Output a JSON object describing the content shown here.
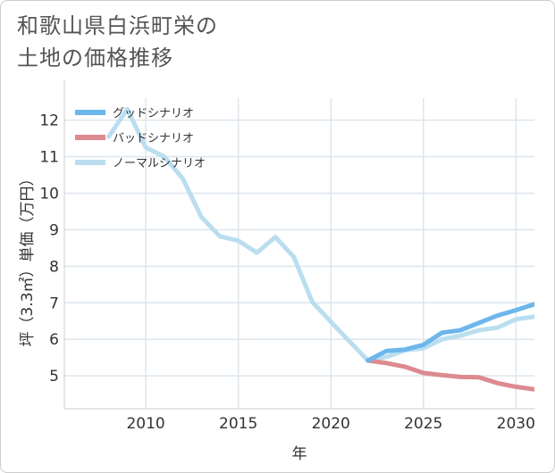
{
  "title_lines": [
    "和歌山県白浜町栄の",
    "土地の価格推移"
  ],
  "chart_data": {
    "type": "line",
    "xlabel": "年",
    "ylabel": "坪（3.3㎡）単価（万円）",
    "xlim": [
      2005.6,
      2031
    ],
    "ylim": [
      4.1,
      12.6
    ],
    "x_ticks": [
      2010,
      2015,
      2020,
      2025,
      2030
    ],
    "y_ticks": [
      5,
      6,
      7,
      8,
      9,
      10,
      11,
      12
    ],
    "grid": true,
    "legend_position": "top-left",
    "series": [
      {
        "name": "グッドシナリオ",
        "color": "#6cb6ec",
        "x": [
          2022,
          2023,
          2024,
          2025,
          2026,
          2027,
          2028,
          2029,
          2030,
          2031
        ],
        "y": [
          5.42,
          5.68,
          5.72,
          5.85,
          6.18,
          6.25,
          6.45,
          6.65,
          6.8,
          6.96
        ]
      },
      {
        "name": "バッドシナリオ",
        "color": "#dd8a90",
        "x": [
          2022,
          2023,
          2024,
          2025,
          2026,
          2027,
          2028,
          2029,
          2030,
          2031
        ],
        "y": [
          5.42,
          5.35,
          5.25,
          5.08,
          5.02,
          4.97,
          4.96,
          4.8,
          4.7,
          4.63
        ]
      },
      {
        "name": "ノーマルシナリオ",
        "color": "#badeef",
        "x": [
          2008,
          2009,
          2010,
          2011,
          2012,
          2013,
          2014,
          2015,
          2016,
          2017,
          2018,
          2019,
          2020,
          2021,
          2022,
          2023,
          2024,
          2025,
          2026,
          2027,
          2028,
          2029,
          2030,
          2031
        ],
        "y": [
          11.55,
          12.3,
          11.25,
          11.0,
          10.4,
          9.35,
          8.82,
          8.7,
          8.37,
          8.8,
          8.25,
          7.02,
          6.48,
          5.95,
          5.42,
          5.52,
          5.7,
          5.75,
          6.0,
          6.1,
          6.25,
          6.32,
          6.55,
          6.62
        ]
      }
    ]
  }
}
